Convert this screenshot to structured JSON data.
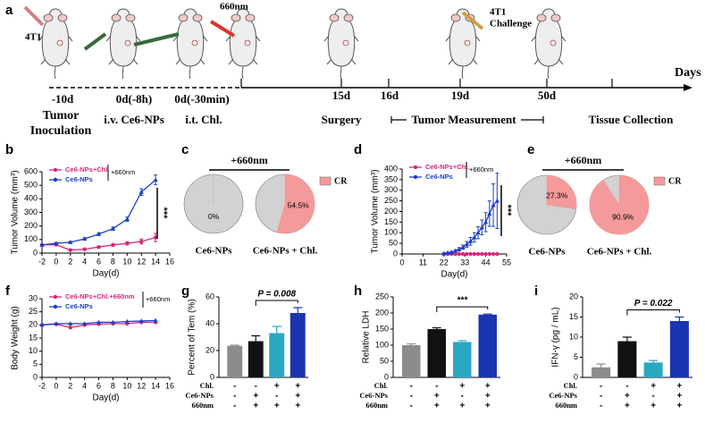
{
  "timeline": {
    "panel": "a",
    "cell_label": "4T1",
    "laser_label": "660nm",
    "challenge_label": [
      "4T1",
      "Challenge"
    ],
    "axis_label": "Days",
    "ticks": [
      "-10d",
      "0d(-8h)",
      "0d(-30min)",
      "15d",
      "16d",
      "19d",
      "50d"
    ],
    "steps": {
      "inoculation": [
        "Tumor",
        "Inoculation"
      ],
      "iv": "i.v. Ce6-NPs",
      "it": "i.t. Chl.",
      "surgery": "Surgery",
      "measurement": "Tumor Measurement",
      "collection": "Tissue Collection"
    }
  },
  "chart_data": [
    {
      "type": "line",
      "panel": "b",
      "ylabel": "Tumor Volume (mm³)",
      "xlabel": "Day(d)",
      "note": "+660nm",
      "significance": "***",
      "x": [
        -2,
        0,
        2,
        4,
        6,
        8,
        10,
        12,
        14
      ],
      "xlim": [
        -2,
        16
      ],
      "xticks": [
        -2,
        0,
        2,
        4,
        6,
        8,
        10,
        12,
        14,
        16
      ],
      "ylim": [
        0,
        600
      ],
      "yticks": [
        0,
        100,
        200,
        300,
        400,
        500,
        600
      ],
      "series": [
        {
          "name": "Ce6-NPs+Chl.",
          "color": "#d6287a",
          "values": [
            60,
            62,
            22,
            28,
            45,
            60,
            72,
            85,
            115
          ],
          "errors": [
            5,
            5,
            5,
            6,
            8,
            10,
            12,
            18,
            30
          ]
        },
        {
          "name": "Ce6-NPs",
          "color": "#1d3fc4",
          "values": [
            60,
            72,
            80,
            105,
            140,
            180,
            250,
            450,
            540
          ],
          "errors": [
            5,
            5,
            6,
            8,
            10,
            12,
            15,
            25,
            35
          ]
        }
      ]
    },
    {
      "type": "pie",
      "panel": "c",
      "heading": "+660nm",
      "legend": "CR",
      "color": "#f59a9a",
      "base_color": "#d2d2d2",
      "labels": [
        "Ce6-NPs",
        "Ce6-NPs + Chl."
      ],
      "values": [
        0,
        54.5
      ],
      "value_labels": [
        "0%",
        "54.5%"
      ]
    },
    {
      "type": "line",
      "panel": "d",
      "ylabel": "Tumor Volume (mm³)",
      "xlabel": "Day(d)",
      "note": "+660nm",
      "significance": "***",
      "x": [
        22,
        24,
        26,
        28,
        30,
        32,
        34,
        36,
        38,
        40,
        42,
        44,
        46,
        48,
        50
      ],
      "xlim": [
        0,
        55
      ],
      "xticks": [
        0,
        11,
        22,
        33,
        44,
        55
      ],
      "ylim": [
        0,
        400
      ],
      "yticks": [
        0,
        50,
        100,
        150,
        200,
        250,
        300,
        350,
        400
      ],
      "series": [
        {
          "name": "Ce6-NPs+Chl.",
          "color": "#d6287a",
          "values": [
            0,
            0,
            0,
            0,
            0,
            0,
            0,
            0,
            0,
            0,
            0,
            0,
            0,
            0,
            0
          ],
          "errors": [
            0,
            0,
            0,
            0,
            0,
            0,
            0,
            0,
            0,
            0,
            0,
            0,
            0,
            0,
            0
          ]
        },
        {
          "name": "Ce6-NPs",
          "color": "#1d3fc4",
          "values": [
            2,
            5,
            8,
            14,
            22,
            32,
            45,
            60,
            78,
            100,
            125,
            150,
            190,
            230,
            250
          ],
          "errors": [
            2,
            3,
            4,
            6,
            8,
            10,
            14,
            18,
            22,
            28,
            35,
            45,
            60,
            100,
            130
          ]
        }
      ]
    },
    {
      "type": "pie",
      "panel": "e",
      "heading": "+660nm",
      "legend": "CR",
      "color": "#f59a9a",
      "base_color": "#d2d2d2",
      "labels": [
        "Ce6-NPs",
        "Ce6-NPs + Chl."
      ],
      "values": [
        27.3,
        90.9
      ],
      "value_labels": [
        "27.3%",
        "90.9%"
      ]
    },
    {
      "type": "line",
      "panel": "f",
      "ylabel": "Body Weight (g)",
      "xlabel": "Day(d)",
      "note": "+660nm",
      "x": [
        -2,
        0,
        2,
        4,
        6,
        8,
        10,
        12,
        14
      ],
      "xlim": [
        -2,
        16
      ],
      "xticks": [
        -2,
        0,
        2,
        4,
        6,
        8,
        10,
        12,
        14,
        16
      ],
      "ylim": [
        0,
        30
      ],
      "yticks": [
        0,
        5,
        10,
        15,
        20,
        25,
        30
      ],
      "series": [
        {
          "name": "Ce6-NPs+Chl.+660nm",
          "color": "#d6287a",
          "values": [
            20,
            20.3,
            19,
            20,
            20.3,
            20.5,
            20.5,
            21,
            21
          ]
        },
        {
          "name": "Ce6-NPs",
          "color": "#1d3fc4",
          "values": [
            20,
            20.5,
            20.5,
            20.5,
            21,
            21,
            21.3,
            21.5,
            21.7
          ]
        }
      ]
    },
    {
      "type": "bar",
      "panel": "g",
      "ylabel": "Percent of Tem (%)",
      "annotation": "P = 0.008",
      "values": [
        23.5,
        27,
        33,
        48
      ],
      "errors": [
        0.5,
        4,
        5,
        4
      ],
      "colors": [
        "#8c8c8c",
        "#111111",
        "#2aa8c0",
        "#1a35b0"
      ],
      "ylim": [
        0,
        60
      ],
      "yticks": [
        0,
        20,
        40,
        60
      ],
      "conditions": [
        {
          "name": "Chl.",
          "signs": [
            "-",
            "-",
            "+",
            "+"
          ]
        },
        {
          "name": "Ce6-NPs",
          "signs": [
            "-",
            "+",
            "-",
            "+"
          ]
        },
        {
          "name": "660nm",
          "signs": [
            "-",
            "+",
            "+",
            "+"
          ]
        }
      ]
    },
    {
      "type": "bar",
      "panel": "h",
      "ylabel": "Relative LDH",
      "annotation": "***",
      "values": [
        100,
        150,
        110,
        195
      ],
      "errors": [
        4,
        4,
        4,
        2
      ],
      "colors": [
        "#8c8c8c",
        "#111111",
        "#2aa8c0",
        "#1a35b0"
      ],
      "ylim": [
        0,
        250
      ],
      "yticks": [
        0,
        50,
        100,
        150,
        200,
        250
      ],
      "conditions": [
        {
          "name": "Chl.",
          "signs": [
            "-",
            "-",
            "+",
            "+"
          ]
        },
        {
          "name": "Ce6-NPs",
          "signs": [
            "-",
            "+",
            "-",
            "+"
          ]
        },
        {
          "name": "660nm",
          "signs": [
            "-",
            "+",
            "+",
            "+"
          ]
        }
      ]
    },
    {
      "type": "bar",
      "panel": "i",
      "ylabel": "IFN-γ (pg / mL)",
      "annotation": "P = 0.022",
      "values": [
        2.5,
        9,
        3.7,
        14
      ],
      "errors": [
        0.8,
        1,
        0.5,
        1
      ],
      "colors": [
        "#8c8c8c",
        "#111111",
        "#2aa8c0",
        "#1a35b0"
      ],
      "ylim": [
        0,
        20
      ],
      "yticks": [
        0,
        5,
        10,
        15,
        20
      ],
      "conditions": [
        {
          "name": "Chl.",
          "signs": [
            "-",
            "-",
            "+",
            "+"
          ]
        },
        {
          "name": "Ce6-NPs",
          "signs": [
            "-",
            "+",
            "-",
            "+"
          ]
        },
        {
          "name": "660nm",
          "signs": [
            "-",
            "+",
            "+",
            "+"
          ]
        }
      ]
    }
  ]
}
